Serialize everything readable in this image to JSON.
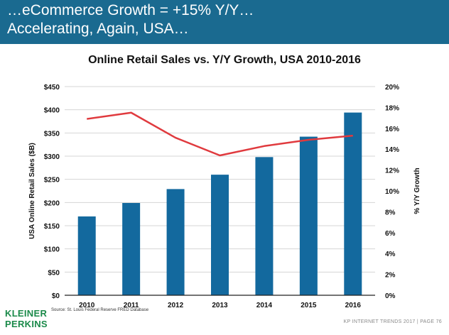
{
  "slide": {
    "title_line1": "…eCommerce Growth = +15% Y/Y…",
    "title_line2": "Accelerating, Again, USA…",
    "source": "Source: St. Louis Federal Reserve FRED Database",
    "logo_line1": "KLEINER",
    "logo_line2": "PERKINS",
    "footer": "KP INTERNET TRENDS 2017 | PAGE 76"
  },
  "colors": {
    "header": "#1a6a90",
    "bar": "#13699e",
    "line": "#e03a3e",
    "logo": "#1b8a4a"
  },
  "chart_data": {
    "type": "bar",
    "title": "Online Retail Sales vs. Y/Y Growth, USA 2010-2016",
    "categories": [
      "2010",
      "2011",
      "2012",
      "2013",
      "2014",
      "2015",
      "2016"
    ],
    "ylabel": "USA Online Retail Sales ($B)",
    "y2label": "% Y/Y Growth",
    "ylim": [
      0,
      450
    ],
    "y2lim": [
      0,
      20
    ],
    "yticks": [
      "$0",
      "$50",
      "$100",
      "$150",
      "$200",
      "$250",
      "$300",
      "$350",
      "$400",
      "$450"
    ],
    "y2ticks": [
      "0%",
      "2%",
      "4%",
      "6%",
      "8%",
      "10%",
      "12%",
      "14%",
      "16%",
      "18%",
      "20%"
    ],
    "grid": true,
    "series": [
      {
        "type": "bar",
        "axis": "left",
        "values": [
          170,
          199,
          229,
          260,
          298,
          342,
          394
        ]
      },
      {
        "type": "line",
        "axis": "right",
        "values": [
          16.9,
          17.5,
          15.1,
          13.4,
          14.3,
          14.9,
          15.3
        ]
      }
    ]
  }
}
